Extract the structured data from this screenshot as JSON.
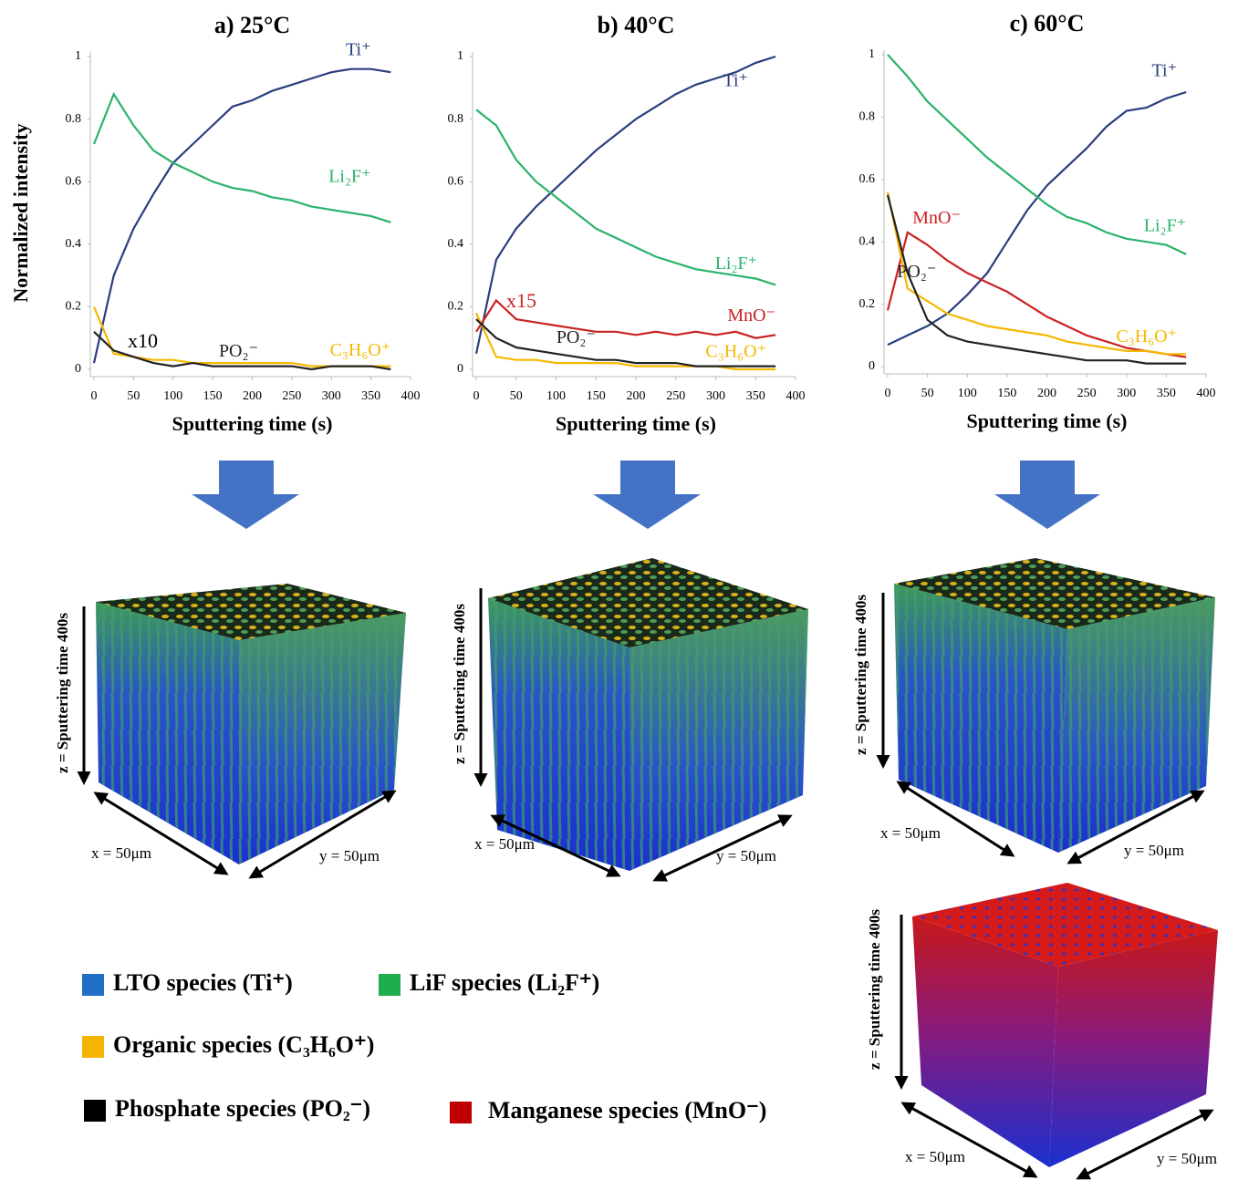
{
  "chart_data": [
    {
      "type": "line",
      "title": "a) 25°C",
      "xlabel": "Sputtering time (s)",
      "ylabel": "Normalized intensity",
      "annotation": "x10",
      "x": [
        0,
        25,
        50,
        75,
        100,
        125,
        150,
        175,
        200,
        225,
        250,
        275,
        300,
        325,
        350,
        375
      ],
      "xlim": [
        0,
        400
      ],
      "xticks": [
        0,
        50,
        100,
        150,
        200,
        250,
        300,
        350,
        400
      ],
      "ylim": [
        0,
        1
      ],
      "yticks": [
        0,
        0.2,
        0.4,
        0.6,
        0.8,
        1
      ],
      "series": [
        {
          "name": "Ti⁺",
          "color": "#2b3d7f",
          "values": [
            0.02,
            0.3,
            0.45,
            0.56,
            0.66,
            0.72,
            0.78,
            0.84,
            0.86,
            0.89,
            0.91,
            0.93,
            0.95,
            0.96,
            0.96,
            0.95
          ]
        },
        {
          "name": "Li₂F⁺",
          "color": "#2ab36a",
          "values": [
            0.72,
            0.88,
            0.78,
            0.7,
            0.66,
            0.63,
            0.6,
            0.58,
            0.57,
            0.55,
            0.54,
            0.52,
            0.51,
            0.5,
            0.49,
            0.47
          ]
        },
        {
          "name": "C₃H₆O⁺",
          "color": "#f5b800",
          "values": [
            0.2,
            0.05,
            0.04,
            0.03,
            0.03,
            0.02,
            0.02,
            0.02,
            0.02,
            0.02,
            0.02,
            0.01,
            0.01,
            0.01,
            0.01,
            0.01
          ]
        },
        {
          "name": "PO₂⁻",
          "color": "#222222",
          "values": [
            0.12,
            0.06,
            0.04,
            0.02,
            0.01,
            0.02,
            0.01,
            0.01,
            0.01,
            0.01,
            0.01,
            0.0,
            0.01,
            0.01,
            0.01,
            0.0
          ]
        }
      ]
    },
    {
      "type": "line",
      "title": "b) 40°C",
      "xlabel": "Sputtering time (s)",
      "annotation": "x15",
      "x": [
        0,
        25,
        50,
        75,
        100,
        125,
        150,
        175,
        200,
        225,
        250,
        275,
        300,
        325,
        350,
        375
      ],
      "xlim": [
        0,
        400
      ],
      "xticks": [
        0,
        50,
        100,
        150,
        200,
        250,
        300,
        350,
        400
      ],
      "ylim": [
        0,
        1
      ],
      "yticks": [
        0,
        0.2,
        0.4,
        0.6,
        0.8,
        1
      ],
      "series": [
        {
          "name": "Ti⁺",
          "color": "#2b3d7f",
          "values": [
            0.05,
            0.35,
            0.45,
            0.52,
            0.58,
            0.64,
            0.7,
            0.75,
            0.8,
            0.84,
            0.88,
            0.91,
            0.93,
            0.95,
            0.98,
            1.0
          ]
        },
        {
          "name": "Li₂F⁺",
          "color": "#2ab36a",
          "values": [
            0.83,
            0.78,
            0.67,
            0.6,
            0.55,
            0.5,
            0.45,
            0.42,
            0.39,
            0.36,
            0.34,
            0.32,
            0.31,
            0.3,
            0.29,
            0.27
          ]
        },
        {
          "name": "MnO⁻",
          "color": "#cc2222",
          "values": [
            0.12,
            0.22,
            0.16,
            0.15,
            0.14,
            0.13,
            0.12,
            0.12,
            0.11,
            0.12,
            0.11,
            0.12,
            0.11,
            0.12,
            0.1,
            0.11
          ]
        },
        {
          "name": "C₃H₆O⁺",
          "color": "#f5b800",
          "values": [
            0.18,
            0.04,
            0.03,
            0.03,
            0.02,
            0.02,
            0.02,
            0.02,
            0.01,
            0.01,
            0.01,
            0.01,
            0.01,
            0.0,
            0.0,
            0.0
          ]
        },
        {
          "name": "PO₂⁻",
          "color": "#222222",
          "values": [
            0.16,
            0.1,
            0.07,
            0.06,
            0.05,
            0.04,
            0.03,
            0.03,
            0.02,
            0.02,
            0.02,
            0.01,
            0.01,
            0.01,
            0.01,
            0.01
          ]
        }
      ]
    },
    {
      "type": "line",
      "title": "c) 60°C",
      "xlabel": "Sputtering time (s)",
      "x": [
        0,
        25,
        50,
        75,
        100,
        125,
        150,
        175,
        200,
        225,
        250,
        275,
        300,
        325,
        350,
        375
      ],
      "xlim": [
        0,
        400
      ],
      "xticks": [
        0,
        50,
        100,
        150,
        200,
        250,
        300,
        350,
        400
      ],
      "ylim": [
        0,
        1
      ],
      "yticks": [
        0,
        0.2,
        0.4,
        0.6,
        0.8,
        1
      ],
      "series": [
        {
          "name": "Ti⁺",
          "color": "#2b3d7f",
          "values": [
            0.07,
            0.1,
            0.13,
            0.17,
            0.23,
            0.3,
            0.4,
            0.5,
            0.58,
            0.64,
            0.7,
            0.77,
            0.82,
            0.83,
            0.86,
            0.88
          ]
        },
        {
          "name": "Li₂F⁺",
          "color": "#2ab36a",
          "values": [
            1.0,
            0.93,
            0.85,
            0.79,
            0.73,
            0.67,
            0.62,
            0.57,
            0.52,
            0.48,
            0.46,
            0.43,
            0.41,
            0.4,
            0.39,
            0.36
          ]
        },
        {
          "name": "MnO⁻",
          "color": "#cc2222",
          "values": [
            0.18,
            0.43,
            0.39,
            0.34,
            0.3,
            0.27,
            0.24,
            0.2,
            0.16,
            0.13,
            0.1,
            0.08,
            0.06,
            0.05,
            0.04,
            0.03
          ]
        },
        {
          "name": "C₃H₆O⁺",
          "color": "#f5b800",
          "values": [
            0.56,
            0.25,
            0.21,
            0.17,
            0.15,
            0.13,
            0.12,
            0.11,
            0.1,
            0.08,
            0.07,
            0.06,
            0.05,
            0.05,
            0.04,
            0.04
          ]
        },
        {
          "name": "PO₂⁻",
          "color": "#222222",
          "values": [
            0.55,
            0.3,
            0.15,
            0.1,
            0.08,
            0.07,
            0.06,
            0.05,
            0.04,
            0.03,
            0.02,
            0.02,
            0.02,
            0.01,
            0.01,
            0.01
          ]
        }
      ]
    }
  ],
  "cubes": [
    {
      "z_label": "z = Sputtering  time 400s",
      "x_label": "x = 50μm",
      "y_label": "y = 50μm"
    },
    {
      "z_label": "z = Sputtering  time 400s",
      "x_label": "x = 50μm",
      "y_label": "y = 50μm"
    },
    {
      "z_label": "z = Sputtering  time 400s",
      "x_label": "x = 50μm",
      "y_label": "y = 50μm"
    },
    {
      "z_label": "z = Sputtering time 400s",
      "x_label": "x = 50μm",
      "y_label": "y = 50μm"
    }
  ],
  "legend": [
    {
      "label": "LTO species (Ti⁺)",
      "color": "#1f6fc4"
    },
    {
      "label": "LiF species (Li₂F⁺)",
      "color": "#1fae4e"
    },
    {
      "label": "Organic species (C₃H₆O⁺)",
      "color": "#f5b400"
    },
    {
      "label": "Phosphate species (PO₂⁻)",
      "color": "#000000"
    },
    {
      "label": "Manganese species (MnO⁻)",
      "color": "#c00000"
    }
  ]
}
